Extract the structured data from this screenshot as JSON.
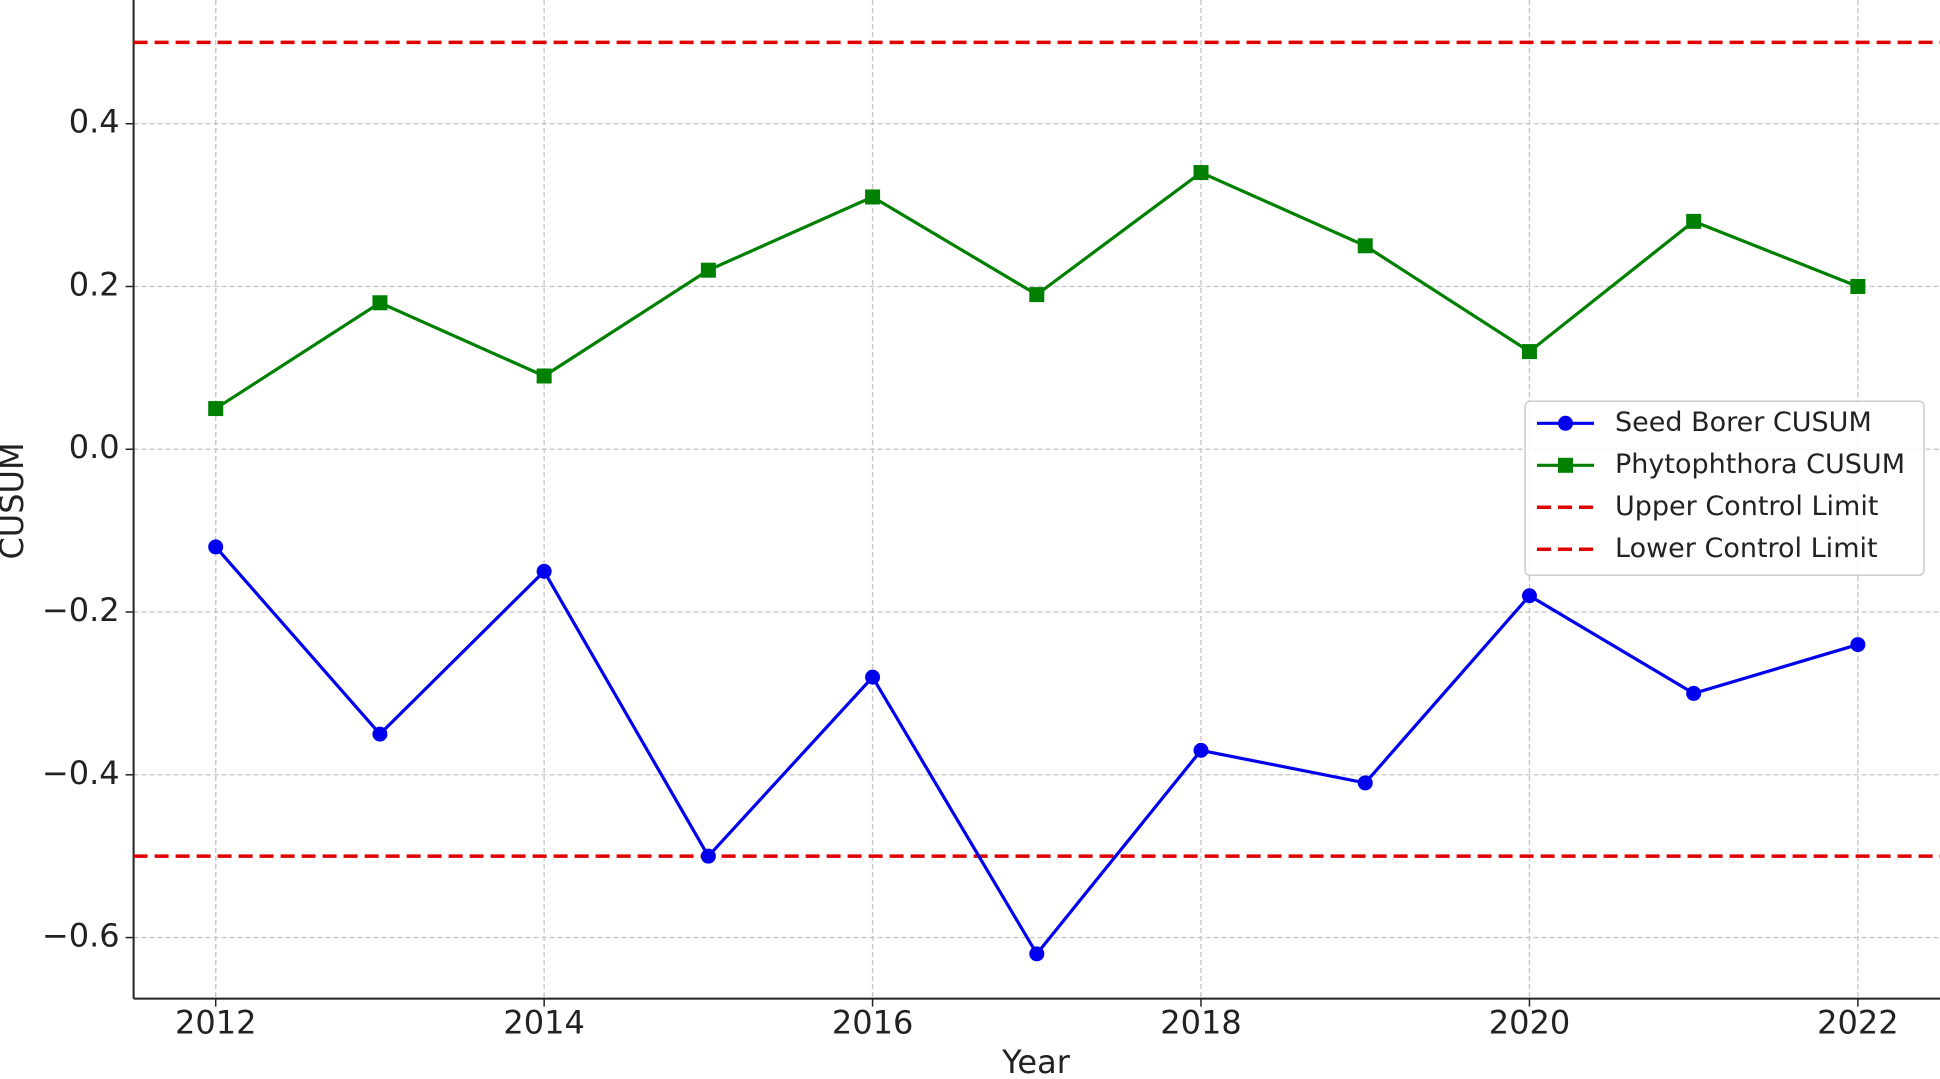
{
  "chart_data": {
    "type": "line",
    "xlabel": "Year",
    "ylabel": "CUSUM",
    "x": [
      2012,
      2013,
      2014,
      2015,
      2016,
      2017,
      2018,
      2019,
      2020,
      2021,
      2022
    ],
    "series": [
      {
        "name": "Seed Borer CUSUM",
        "color": "#0000ee",
        "marker": "circle",
        "values": [
          -0.12,
          -0.35,
          -0.15,
          -0.5,
          -0.28,
          -0.62,
          -0.37,
          -0.41,
          -0.18,
          -0.3,
          -0.24
        ]
      },
      {
        "name": "Phytophthora CUSUM",
        "color": "#008000",
        "marker": "square",
        "values": [
          0.05,
          0.18,
          0.09,
          0.22,
          0.31,
          0.19,
          0.34,
          0.25,
          0.12,
          0.28,
          0.2
        ]
      }
    ],
    "control_limits": [
      {
        "name": "Upper Control Limit",
        "value": 0.5,
        "color": "#e00000"
      },
      {
        "name": "Lower Control Limit",
        "value": -0.5,
        "color": "#e00000"
      }
    ],
    "xlim": [
      2011.5,
      2022.5
    ],
    "ylim": [
      -0.675,
      0.552
    ],
    "xticks": [
      2012,
      2014,
      2016,
      2018,
      2020,
      2022
    ],
    "yticks": [
      {
        "value": -0.6,
        "label": "−0.6"
      },
      {
        "value": -0.4,
        "label": "−0.4"
      },
      {
        "value": -0.2,
        "label": "−0.2"
      },
      {
        "value": 0,
        "label": "0.0"
      },
      0.2,
      0.4
    ],
    "grid": true,
    "legend": "center right"
  }
}
